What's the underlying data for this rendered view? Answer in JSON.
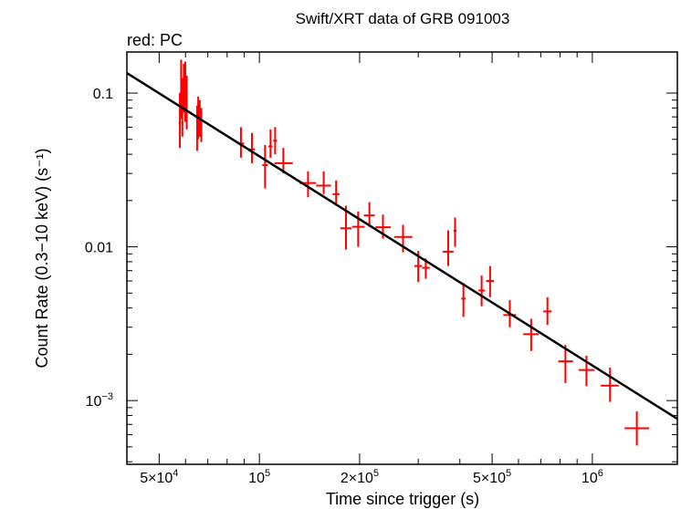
{
  "chart_data": {
    "type": "scatter",
    "title": "Swift/XRT data of GRB 091003",
    "subtitle": "red: PC",
    "xlabel": "Time since trigger (s)",
    "ylabel": "Count Rate (0.3−10 keV) (s⁻¹)",
    "x_scale": "log",
    "y_scale": "log",
    "xlim": [
      40000,
      1800000
    ],
    "ylim": [
      0.000385,
      0.185
    ],
    "grid": false,
    "x_ticks": [
      {
        "value": 50000,
        "mantissa": "5×10",
        "exp": "4"
      },
      {
        "value": 100000,
        "mantissa": "10",
        "exp": "5"
      },
      {
        "value": 200000,
        "mantissa": "2×10",
        "exp": "5"
      },
      {
        "value": 500000,
        "mantissa": "5×10",
        "exp": "5"
      },
      {
        "value": 1000000,
        "mantissa": "10",
        "exp": "6"
      }
    ],
    "y_ticks": [
      {
        "value": 0.1,
        "mantissa": "0.1",
        "exp": ""
      },
      {
        "value": 0.01,
        "mantissa": "0.01",
        "exp": ""
      },
      {
        "value": 0.001,
        "mantissa": "10",
        "exp": "−3"
      }
    ],
    "series": [
      {
        "color": "#ff0000",
        "points": [
          {
            "x": 57700,
            "x_lo": 57200,
            "x_hi": 58200,
            "y": 0.064,
            "y_lo": 0.044,
            "y_hi": 0.1
          },
          {
            "x": 58200,
            "x_lo": 57800,
            "x_hi": 58600,
            "y": 0.1,
            "y_lo": 0.068,
            "y_hi": 0.165
          },
          {
            "x": 58700,
            "x_lo": 58300,
            "x_hi": 59100,
            "y": 0.078,
            "y_lo": 0.052,
            "y_hi": 0.125
          },
          {
            "x": 59300,
            "x_lo": 58900,
            "x_hi": 59700,
            "y": 0.11,
            "y_lo": 0.075,
            "y_hi": 0.155
          },
          {
            "x": 59900,
            "x_lo": 59500,
            "x_hi": 60300,
            "y": 0.095,
            "y_lo": 0.065,
            "y_hi": 0.16
          },
          {
            "x": 60500,
            "x_lo": 60100,
            "x_hi": 60900,
            "y": 0.085,
            "y_lo": 0.058,
            "y_hi": 0.13
          },
          {
            "x": 65000,
            "x_lo": 64600,
            "x_hi": 65400,
            "y": 0.06,
            "y_lo": 0.042,
            "y_hi": 0.083
          },
          {
            "x": 65500,
            "x_lo": 65100,
            "x_hi": 65900,
            "y": 0.072,
            "y_lo": 0.05,
            "y_hi": 0.095
          },
          {
            "x": 66200,
            "x_lo": 65800,
            "x_hi": 66600,
            "y": 0.075,
            "y_lo": 0.052,
            "y_hi": 0.09
          },
          {
            "x": 66900,
            "x_lo": 66500,
            "x_hi": 67300,
            "y": 0.068,
            "y_lo": 0.048,
            "y_hi": 0.08
          },
          {
            "x": 88000,
            "x_lo": 86000,
            "x_hi": 90000,
            "y": 0.047,
            "y_lo": 0.038,
            "y_hi": 0.06
          },
          {
            "x": 95000,
            "x_lo": 93000,
            "x_hi": 97000,
            "y": 0.043,
            "y_lo": 0.035,
            "y_hi": 0.055
          },
          {
            "x": 104000,
            "x_lo": 102000,
            "x_hi": 106000,
            "y": 0.034,
            "y_lo": 0.024,
            "y_hi": 0.046
          },
          {
            "x": 108000,
            "x_lo": 106500,
            "x_hi": 109500,
            "y": 0.045,
            "y_lo": 0.038,
            "y_hi": 0.058
          },
          {
            "x": 111500,
            "x_lo": 110000,
            "x_hi": 113000,
            "y": 0.049,
            "y_lo": 0.04,
            "y_hi": 0.06
          },
          {
            "x": 118000,
            "x_lo": 111000,
            "x_hi": 126000,
            "y": 0.035,
            "y_lo": 0.03,
            "y_hi": 0.044
          },
          {
            "x": 140000,
            "x_lo": 132000,
            "x_hi": 148000,
            "y": 0.026,
            "y_lo": 0.021,
            "y_hi": 0.031
          },
          {
            "x": 156000,
            "x_lo": 148000,
            "x_hi": 164000,
            "y": 0.025,
            "y_lo": 0.022,
            "y_hi": 0.031
          },
          {
            "x": 170000,
            "x_lo": 166000,
            "x_hi": 174000,
            "y": 0.022,
            "y_lo": 0.019,
            "y_hi": 0.027
          },
          {
            "x": 182000,
            "x_lo": 175000,
            "x_hi": 189000,
            "y": 0.0132,
            "y_lo": 0.0096,
            "y_hi": 0.0185
          },
          {
            "x": 198000,
            "x_lo": 190000,
            "x_hi": 207000,
            "y": 0.0135,
            "y_lo": 0.01,
            "y_hi": 0.017
          },
          {
            "x": 214000,
            "x_lo": 206000,
            "x_hi": 222000,
            "y": 0.016,
            "y_lo": 0.0135,
            "y_hi": 0.0195
          },
          {
            "x": 235000,
            "x_lo": 223000,
            "x_hi": 248000,
            "y": 0.0134,
            "y_lo": 0.0113,
            "y_hi": 0.0162
          },
          {
            "x": 270000,
            "x_lo": 254000,
            "x_hi": 288000,
            "y": 0.0116,
            "y_lo": 0.0092,
            "y_hi": 0.0139
          },
          {
            "x": 300000,
            "x_lo": 292000,
            "x_hi": 308000,
            "y": 0.0075,
            "y_lo": 0.0059,
            "y_hi": 0.0094
          },
          {
            "x": 316000,
            "x_lo": 308000,
            "x_hi": 325000,
            "y": 0.0073,
            "y_lo": 0.0062,
            "y_hi": 0.0084
          },
          {
            "x": 369000,
            "x_lo": 355000,
            "x_hi": 383000,
            "y": 0.0093,
            "y_lo": 0.0075,
            "y_hi": 0.0128
          },
          {
            "x": 387000,
            "x_lo": 383000,
            "x_hi": 391000,
            "y": 0.0127,
            "y_lo": 0.01,
            "y_hi": 0.0155
          },
          {
            "x": 410000,
            "x_lo": 404000,
            "x_hi": 416000,
            "y": 0.0046,
            "y_lo": 0.0035,
            "y_hi": 0.0058
          },
          {
            "x": 465000,
            "x_lo": 455000,
            "x_hi": 475000,
            "y": 0.0052,
            "y_lo": 0.0041,
            "y_hi": 0.0065
          },
          {
            "x": 493000,
            "x_lo": 480000,
            "x_hi": 506000,
            "y": 0.006,
            "y_lo": 0.0047,
            "y_hi": 0.0075
          },
          {
            "x": 565000,
            "x_lo": 540000,
            "x_hi": 590000,
            "y": 0.0036,
            "y_lo": 0.003,
            "y_hi": 0.0045
          },
          {
            "x": 655000,
            "x_lo": 620000,
            "x_hi": 690000,
            "y": 0.0027,
            "y_lo": 0.0021,
            "y_hi": 0.0034
          },
          {
            "x": 733000,
            "x_lo": 712000,
            "x_hi": 755000,
            "y": 0.0038,
            "y_lo": 0.0031,
            "y_hi": 0.0047
          },
          {
            "x": 830000,
            "x_lo": 790000,
            "x_hi": 875000,
            "y": 0.0018,
            "y_lo": 0.0013,
            "y_hi": 0.0023
          },
          {
            "x": 960000,
            "x_lo": 910000,
            "x_hi": 1015000,
            "y": 0.00158,
            "y_lo": 0.00124,
            "y_hi": 0.00196
          },
          {
            "x": 1130000,
            "x_lo": 1060000,
            "x_hi": 1200000,
            "y": 0.00125,
            "y_lo": 0.00098,
            "y_hi": 0.00164
          },
          {
            "x": 1360000,
            "x_lo": 1250000,
            "x_hi": 1480000,
            "y": 0.00066,
            "y_lo": 0.00051,
            "y_hi": 0.00085
          }
        ]
      }
    ],
    "fit_line": {
      "color": "#000000",
      "points": [
        {
          "x": 40000,
          "y": 0.135
        },
        {
          "x": 1800000,
          "y": 0.00076
        }
      ]
    }
  }
}
